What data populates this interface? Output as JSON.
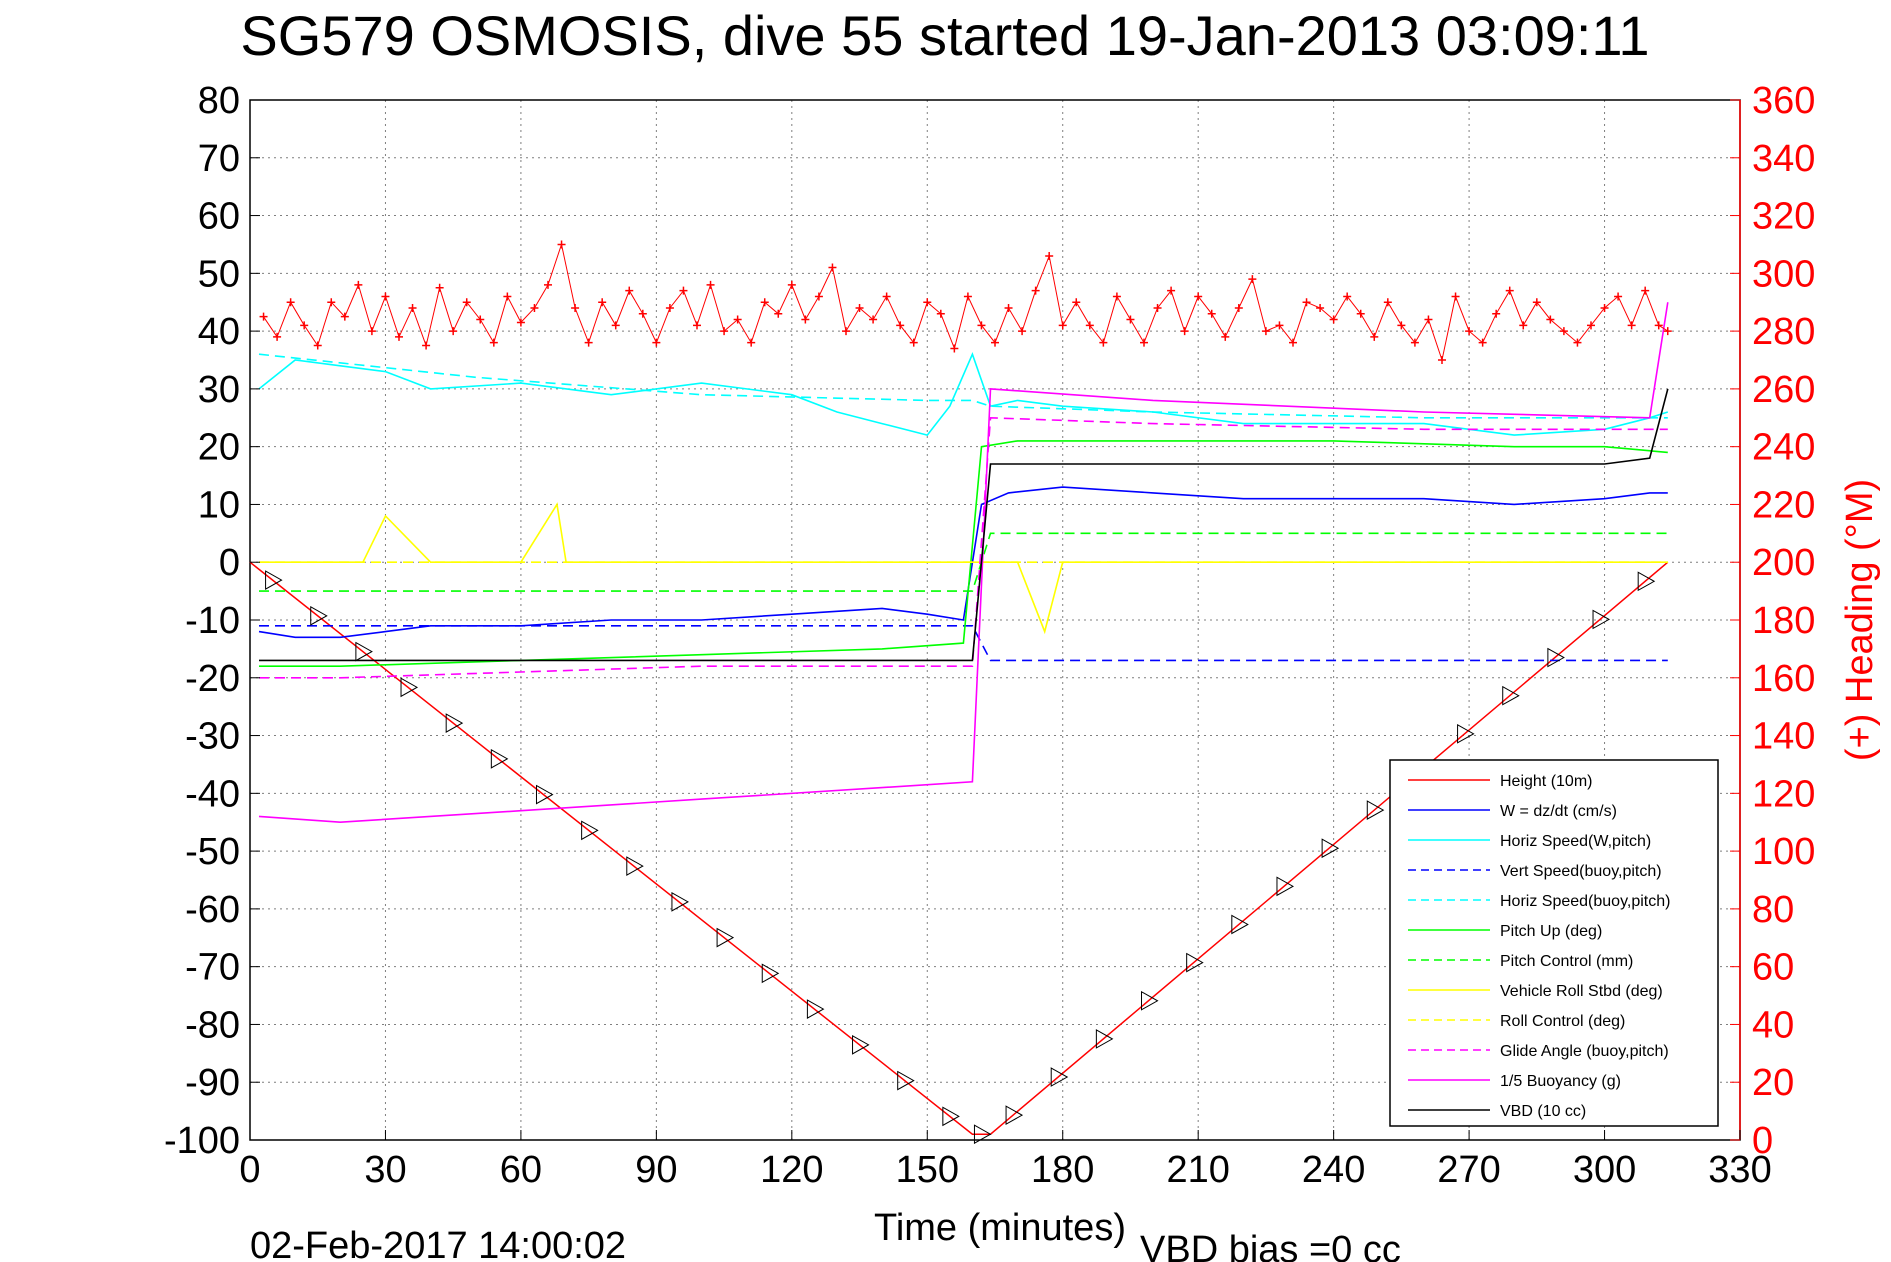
{
  "chart_data": {
    "type": "line",
    "title": "SG579 OSMOSIS, dive 55 started 19-Jan-2013 03:09:11",
    "xlabel": "Time (minutes)",
    "ylabel": "",
    "ylabel_right": "(+) Heading (°M)",
    "xlim": [
      0,
      330
    ],
    "ylim": [
      -100,
      80
    ],
    "ylim_right": [
      0,
      360
    ],
    "xticks": [
      "0",
      "30",
      "60",
      "90",
      "120",
      "150",
      "180",
      "210",
      "240",
      "270",
      "300",
      "330"
    ],
    "yticks": [
      "-100",
      "-90",
      "-80",
      "-70",
      "-60",
      "-50",
      "-40",
      "-30",
      "-20",
      "-10",
      "0",
      "10",
      "20",
      "30",
      "40",
      "50",
      "60",
      "70",
      "80"
    ],
    "yticks_right": [
      "0",
      "20",
      "40",
      "60",
      "80",
      "100",
      "120",
      "140",
      "160",
      "180",
      "200",
      "220",
      "240",
      "260",
      "280",
      "300",
      "320",
      "340",
      "360"
    ],
    "grid": true,
    "legend_position": "bottom-right",
    "colors": {
      "height": "#ff0000",
      "w": "#0000ff",
      "horiz_w": "#00ffff",
      "vert_buoy": "#0000ff",
      "horiz_buoy": "#00ffff",
      "pitch_up": "#00ff00",
      "pitch_ctrl": "#00ff00",
      "roll": "#ffff00",
      "roll_ctrl": "#ffff00",
      "glide": "#ff00ff",
      "buoyancy": "#ff00ff",
      "vbd": "#000000",
      "heading": "#ff0000"
    },
    "series": [
      {
        "key": "height",
        "name": "Height (10m)",
        "style": "solid",
        "x": [
          0,
          160,
          164,
          314
        ],
        "y": [
          0,
          -99,
          -99,
          0
        ]
      },
      {
        "key": "w",
        "name": "W  = dz/dt (cm/s)",
        "style": "solid",
        "x": [
          2,
          10,
          20,
          30,
          40,
          60,
          80,
          100,
          120,
          140,
          150,
          158,
          162,
          168,
          180,
          200,
          220,
          240,
          260,
          280,
          300,
          310,
          314
        ],
        "y": [
          -12,
          -13,
          -13,
          -12,
          -11,
          -11,
          -10,
          -10,
          -9,
          -8,
          -9,
          -10,
          10,
          12,
          13,
          12,
          11,
          11,
          11,
          10,
          11,
          12,
          12
        ]
      },
      {
        "key": "horiz_w",
        "name": "Horiz Speed(W,pitch)",
        "style": "solid",
        "x": [
          2,
          10,
          20,
          30,
          40,
          60,
          80,
          100,
          120,
          130,
          140,
          150,
          155,
          160,
          164,
          170,
          180,
          200,
          220,
          240,
          260,
          280,
          300,
          310,
          314
        ],
        "y": [
          30,
          35,
          34,
          33,
          30,
          31,
          29,
          31,
          29,
          26,
          24,
          22,
          27,
          36,
          27,
          28,
          27,
          26,
          24,
          24,
          24,
          22,
          23,
          25,
          26
        ]
      },
      {
        "key": "vert_buoy",
        "name": "Vert Speed(buoy,pitch)",
        "style": "dash",
        "x": [
          2,
          50,
          100,
          150,
          160,
          164,
          200,
          260,
          314
        ],
        "y": [
          -11,
          -11,
          -11,
          -11,
          -11,
          -17,
          -17,
          -17,
          -17
        ]
      },
      {
        "key": "horiz_buoy",
        "name": "Horiz Speed(buoy,pitch)",
        "style": "dash",
        "x": [
          2,
          50,
          100,
          150,
          160,
          164,
          200,
          260,
          314
        ],
        "y": [
          36,
          32,
          29,
          28,
          28,
          27,
          26,
          25,
          25
        ]
      },
      {
        "key": "pitch_up",
        "name": "Pitch Up (deg)",
        "style": "solid",
        "x": [
          2,
          20,
          60,
          100,
          140,
          158,
          162,
          170,
          200,
          240,
          280,
          300,
          314
        ],
        "y": [
          -18,
          -18,
          -17,
          -16,
          -15,
          -14,
          20,
          21,
          21,
          21,
          20,
          20,
          19
        ]
      },
      {
        "key": "pitch_ctrl",
        "name": "Pitch Control (mm)",
        "style": "dash",
        "x": [
          2,
          160,
          164,
          314
        ],
        "y": [
          -5,
          -5,
          5,
          5
        ]
      },
      {
        "key": "roll",
        "name": "Vehicle Roll Stbd (deg)",
        "style": "solid",
        "x": [
          2,
          25,
          30,
          40,
          60,
          68,
          70,
          90,
          120,
          160,
          170,
          176,
          180,
          200,
          240,
          280,
          300,
          314
        ],
        "y": [
          0,
          0,
          8,
          0,
          0,
          10,
          0,
          0,
          0,
          0,
          0,
          -12,
          0,
          0,
          0,
          0,
          0,
          0
        ]
      },
      {
        "key": "roll_ctrl",
        "name": "Roll Control (deg)",
        "style": "dash",
        "x": [
          2,
          160,
          164,
          314
        ],
        "y": [
          0,
          0,
          0,
          0
        ]
      },
      {
        "key": "glide",
        "name": "Glide Angle (buoy,pitch)",
        "style": "dash",
        "x": [
          2,
          20,
          60,
          100,
          160,
          164,
          200,
          260,
          314
        ],
        "y": [
          -20,
          -20,
          -19,
          -18,
          -18,
          25,
          24,
          23,
          23
        ]
      },
      {
        "key": "buoyancy",
        "name": "1/5 Buoyancy (g)",
        "style": "solid",
        "x": [
          2,
          20,
          60,
          100,
          140,
          160,
          164,
          200,
          260,
          310,
          314
        ],
        "y": [
          -44,
          -45,
          -43,
          -41,
          -39,
          -38,
          30,
          28,
          26,
          25,
          45
        ]
      },
      {
        "key": "vbd",
        "name": "VBD (10 cc)",
        "style": "solid",
        "x": [
          2,
          160,
          164,
          300,
          310,
          314
        ],
        "y": [
          -17,
          -17,
          17,
          17,
          18,
          30
        ]
      }
    ],
    "heading": {
      "name": "(+) Heading",
      "x": [
        3,
        6,
        9,
        12,
        15,
        18,
        21,
        24,
        27,
        30,
        33,
        36,
        39,
        42,
        45,
        48,
        51,
        54,
        57,
        60,
        63,
        66,
        69,
        72,
        75,
        78,
        81,
        84,
        87,
        90,
        93,
        96,
        99,
        102,
        105,
        108,
        111,
        114,
        117,
        120,
        123,
        126,
        129,
        132,
        135,
        138,
        141,
        144,
        147,
        150,
        153,
        156,
        159,
        162,
        165,
        168,
        171,
        174,
        177,
        180,
        183,
        186,
        189,
        192,
        195,
        198,
        201,
        204,
        207,
        210,
        213,
        216,
        219,
        222,
        225,
        228,
        231,
        234,
        237,
        240,
        243,
        246,
        249,
        252,
        255,
        258,
        261,
        264,
        267,
        270,
        273,
        276,
        279,
        282,
        285,
        288,
        291,
        294,
        297,
        300,
        303,
        306,
        309,
        312,
        314
      ],
      "y": [
        285,
        278,
        290,
        282,
        275,
        290,
        285,
        296,
        280,
        292,
        278,
        288,
        275,
        295,
        280,
        290,
        284,
        276,
        292,
        283,
        288,
        296,
        310,
        288,
        276,
        290,
        282,
        294,
        286,
        276,
        288,
        294,
        282,
        296,
        280,
        284,
        276,
        290,
        286,
        296,
        284,
        292,
        302,
        280,
        288,
        284,
        292,
        282,
        276,
        290,
        286,
        274,
        292,
        282,
        276,
        288,
        280,
        294,
        306,
        282,
        290,
        282,
        276,
        292,
        284,
        276,
        288,
        294,
        280,
        292,
        286,
        278,
        288,
        298,
        280,
        282,
        276,
        290,
        288,
        284,
        292,
        286,
        278,
        290,
        282,
        276,
        284,
        270,
        292,
        280,
        276,
        286,
        294,
        282,
        290,
        284,
        280,
        276,
        282,
        288,
        292,
        282,
        294,
        282,
        280
      ]
    },
    "annotations": [
      "02-Feb-2017 14:00:02",
      "VBD bias =0 cc"
    ]
  }
}
